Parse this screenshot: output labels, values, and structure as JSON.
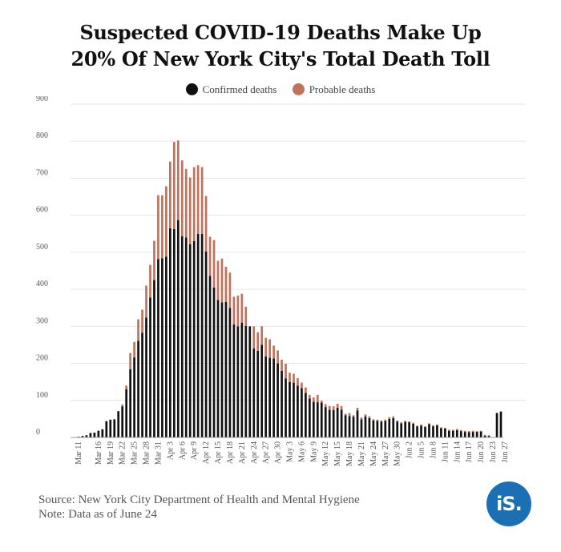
{
  "title_line1": "Suspected COVID-19 Deaths Make Up",
  "title_line2": "20% Of New York City's Total Death Toll",
  "footer": {
    "source": "Source: New York City Department of Health and Mental Hygiene",
    "note": "Note: Data as of June 24"
  },
  "logo_text": "iS.",
  "colors": {
    "confirmed": "#111111",
    "probable": "#c0725a",
    "grid": "#e6e6e6",
    "brand": "#1a6fb5"
  },
  "chart_data": {
    "type": "bar",
    "stacked": true,
    "ylim": [
      0,
      900
    ],
    "yticks": [
      0,
      100,
      200,
      300,
      400,
      500,
      600,
      700,
      800,
      900
    ],
    "grid": true,
    "legend_placement": "top-center",
    "series": [
      {
        "name": "Confirmed deaths",
        "values": [
          2,
          4,
          6,
          12,
          13,
          18,
          22,
          44,
          48,
          49,
          71,
          84,
          130,
          184,
          216,
          261,
          283,
          324,
          378,
          425,
          482,
          484,
          488,
          565,
          563,
          587,
          543,
          540,
          522,
          530,
          550,
          550,
          502,
          436,
          405,
          371,
          365,
          366,
          350,
          305,
          300,
          310,
          301,
          300,
          240,
          234,
          250,
          219,
          215,
          213,
          200,
          180,
          159,
          150,
          148,
          140,
          133,
          120,
          105,
          96,
          95,
          94,
          82,
          75,
          74,
          80,
          75,
          60,
          58,
          56,
          73,
          49,
          57,
          52,
          46,
          45,
          43,
          45,
          50,
          52,
          43,
          38,
          42,
          41,
          37,
          30,
          32,
          28,
          36,
          30,
          33,
          25,
          24,
          18,
          18,
          20,
          17,
          15,
          14,
          15,
          15,
          16,
          5,
          4,
          0,
          66,
          70
        ]
      },
      {
        "name": "Probable deaths",
        "values": [
          0,
          0,
          0,
          0,
          0,
          0,
          0,
          0,
          0,
          0,
          0,
          5,
          10,
          44,
          42,
          58,
          62,
          86,
          88,
          106,
          172,
          170,
          190,
          180,
          235,
          215,
          205,
          185,
          180,
          200,
          185,
          180,
          150,
          106,
          128,
          106,
          118,
          95,
          95,
          75,
          83,
          78,
          52,
          0,
          60,
          50,
          50,
          50,
          50,
          35,
          35,
          30,
          40,
          25,
          24,
          20,
          15,
          15,
          10,
          12,
          20,
          5,
          8,
          10,
          10,
          11,
          10,
          4,
          8,
          4,
          7,
          5,
          5,
          5,
          3,
          3,
          3,
          3,
          5,
          5,
          3,
          3,
          3,
          2,
          3,
          2,
          3,
          2,
          2,
          3,
          2,
          2,
          2,
          3,
          3,
          3,
          3,
          3,
          3,
          3,
          2,
          2,
          2,
          2,
          0,
          0,
          0
        ]
      }
    ],
    "x_tick_labels": [
      "Mar 11",
      "Mar 16",
      "Mar 19",
      "Mar 22",
      "Mar 25",
      "Mar 28",
      "Mar 31",
      "Apr 3",
      "Apr 6",
      "Apr 9",
      "Apr 12",
      "Apr 15",
      "Apr 18",
      "Apr 21",
      "Apr 24",
      "Apr 27",
      "Apr 30",
      "May 3",
      "May 6",
      "May 9",
      "May 12",
      "May 15",
      "May 18",
      "May 21",
      "May 24",
      "May 27",
      "May 30",
      "Jun 2",
      "Jun 5",
      "Jun 8",
      "Jun 11",
      "Jun 14",
      "Jun 17",
      "Jun 20",
      "Jun 23",
      "Jun 27"
    ],
    "x_tick_positions": [
      0,
      5,
      8,
      11,
      14,
      17,
      20,
      23,
      26,
      29,
      32,
      35,
      38,
      41,
      44,
      47,
      50,
      53,
      56,
      59,
      62,
      65,
      68,
      71,
      74,
      77,
      80,
      83,
      86,
      89,
      92,
      95,
      98,
      101,
      104,
      107
    ]
  }
}
